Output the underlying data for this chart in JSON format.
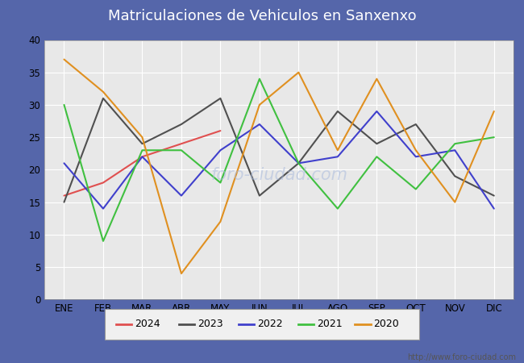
{
  "title": "Matriculaciones de Vehiculos en Sanxenxo",
  "months": [
    "ENE",
    "FEB",
    "MAR",
    "ABR",
    "MAY",
    "JUN",
    "JUL",
    "AGO",
    "SEP",
    "OCT",
    "NOV",
    "DIC"
  ],
  "series": {
    "2024": [
      16,
      18,
      22,
      24,
      26,
      null,
      null,
      null,
      null,
      null,
      null,
      null
    ],
    "2023": [
      15,
      31,
      24,
      27,
      31,
      16,
      21,
      29,
      24,
      27,
      19,
      16
    ],
    "2022": [
      21,
      14,
      22,
      16,
      23,
      27,
      21,
      22,
      29,
      22,
      23,
      14
    ],
    "2021": [
      30,
      9,
      23,
      23,
      18,
      34,
      21,
      14,
      22,
      17,
      24,
      25
    ],
    "2020": [
      37,
      32,
      25,
      4,
      12,
      30,
      35,
      23,
      34,
      23,
      15,
      29
    ]
  },
  "colors": {
    "2024": "#e05050",
    "2023": "#505050",
    "2022": "#4040cc",
    "2021": "#40c040",
    "2020": "#e09020"
  },
  "ylim": [
    0,
    40
  ],
  "yticks": [
    0,
    5,
    10,
    15,
    20,
    25,
    30,
    35,
    40
  ],
  "title_bg": "#5566aa",
  "title_color": "white",
  "plot_bg": "#e8e8e8",
  "grid_color": "white",
  "watermark_text": "foro-ciudad.com",
  "watermark_color": "#aabbdd",
  "url": "http://www.foro-ciudad.com",
  "title_fontsize": 13,
  "tick_fontsize": 8.5,
  "legend_fontsize": 9,
  "legend_bg": "#f0f0f0",
  "legend_edge": "#999999"
}
